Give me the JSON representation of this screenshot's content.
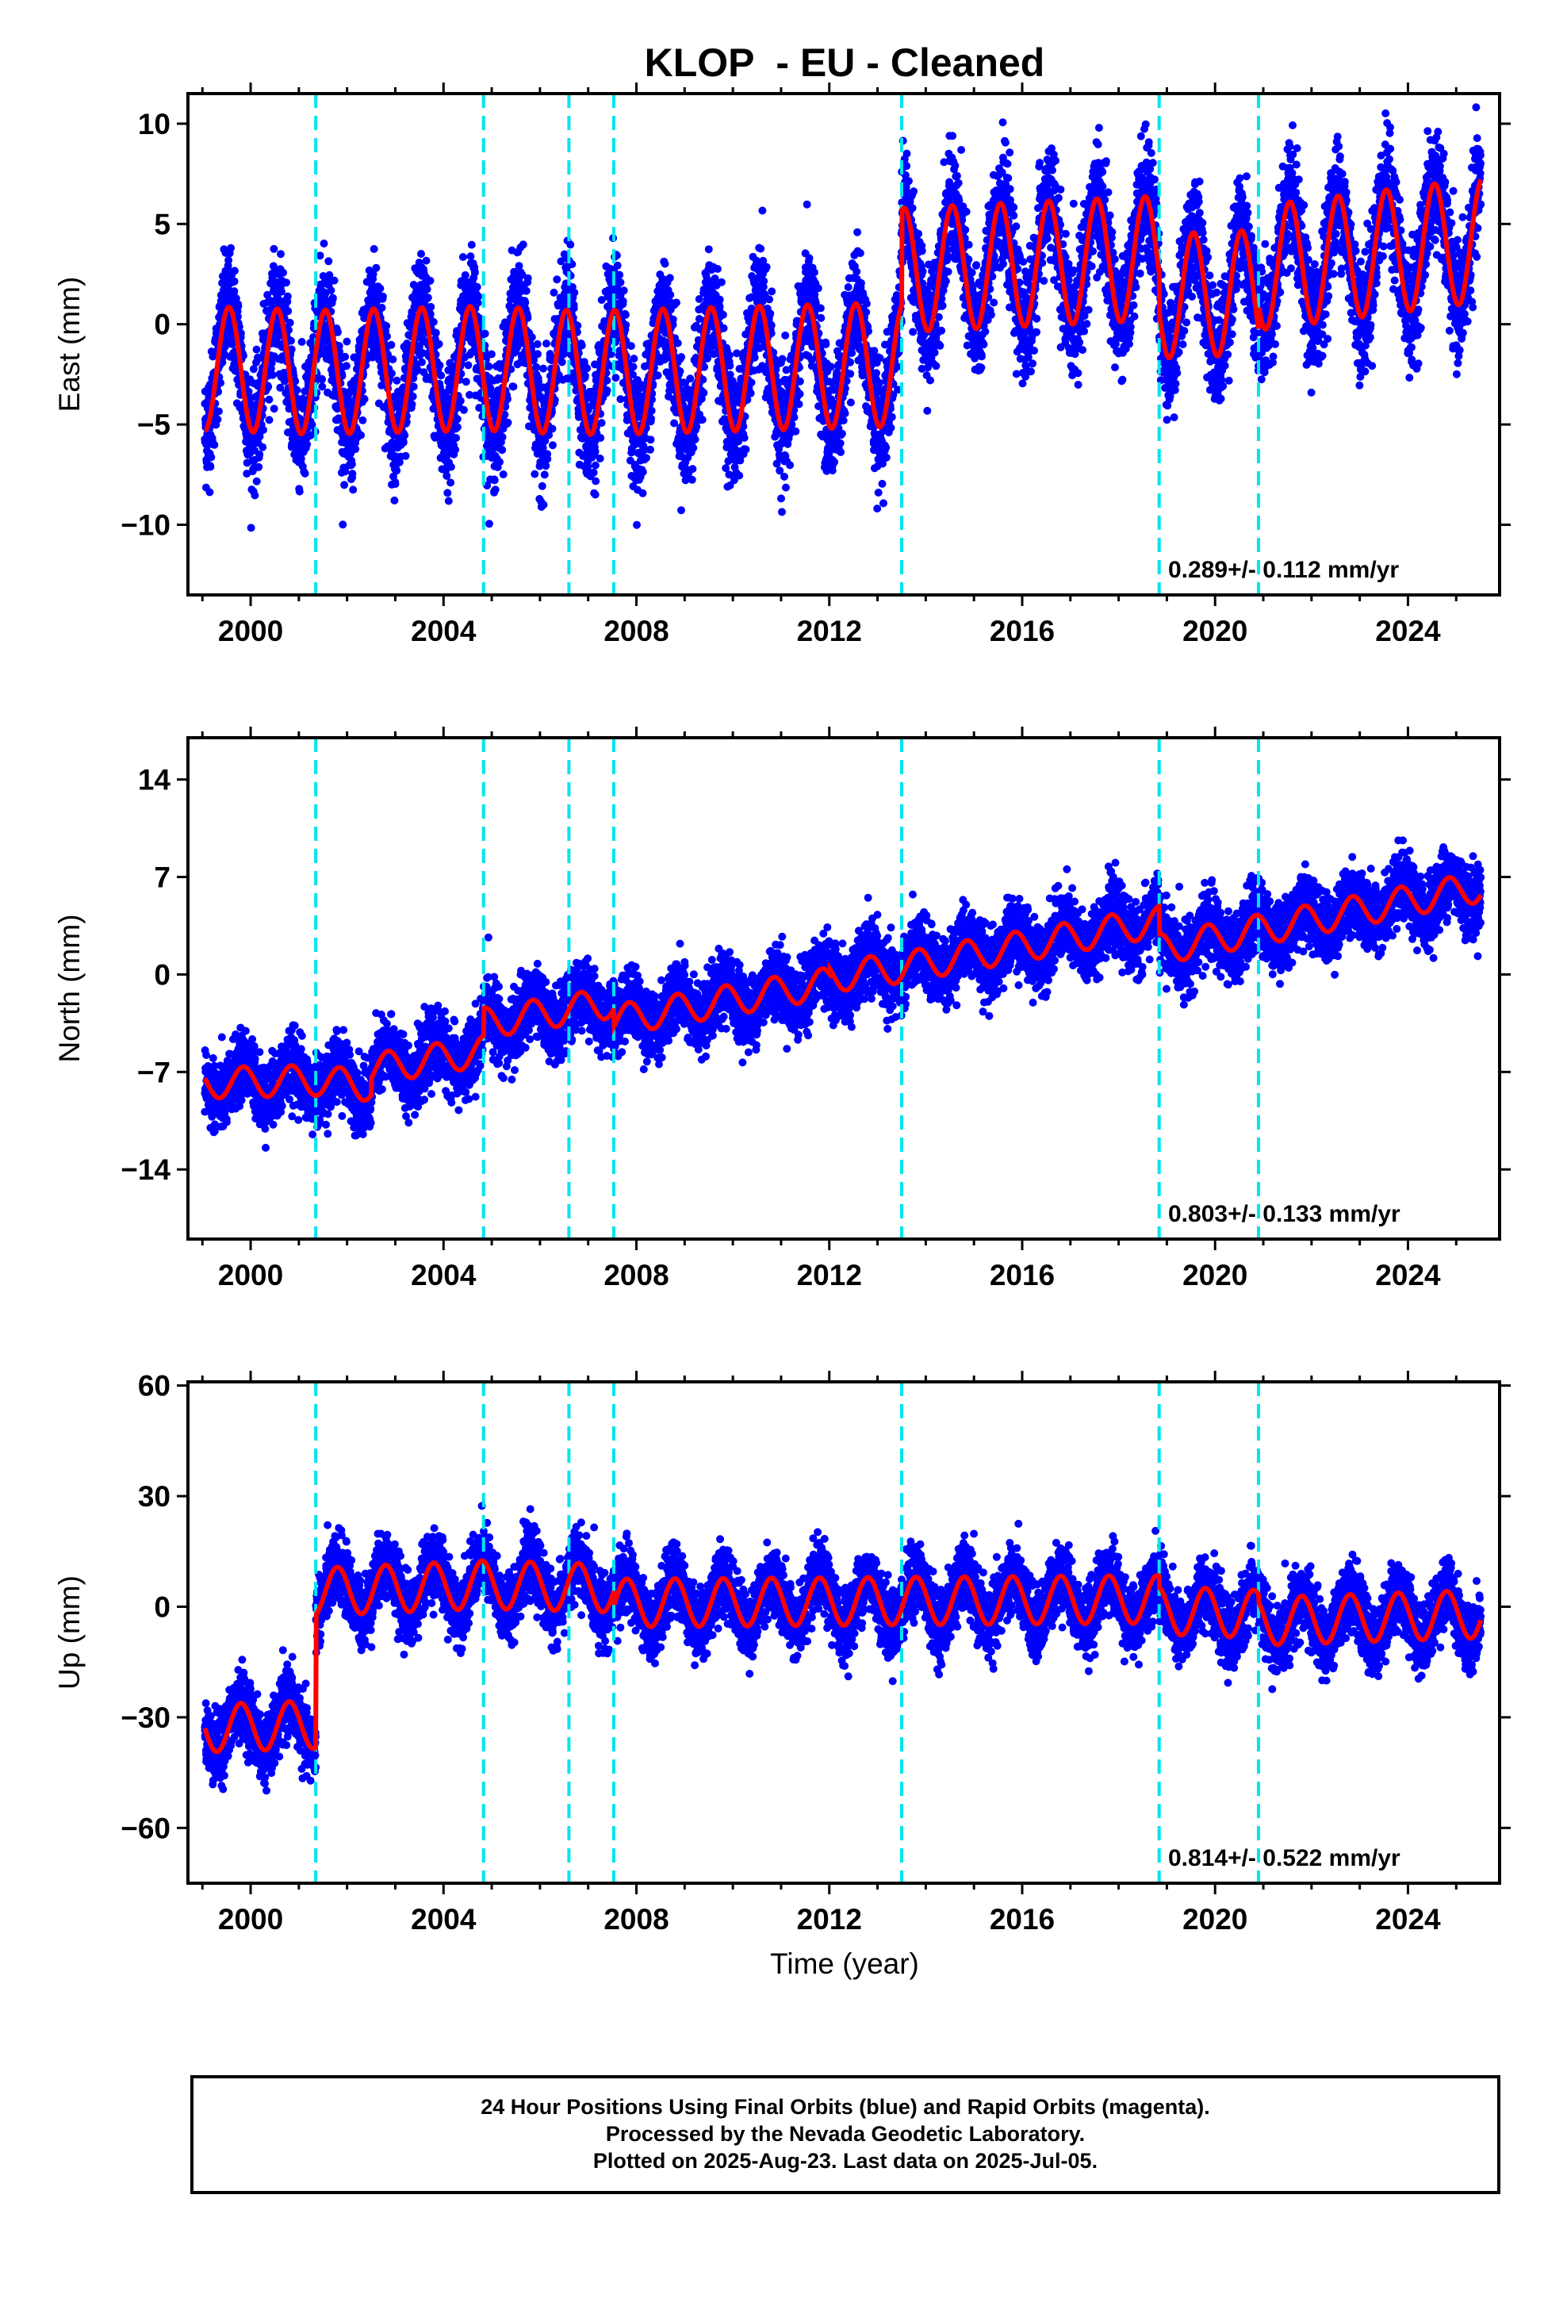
{
  "title": "KLOP  - EU - Cleaned",
  "xlabel": "Time (year)",
  "colors": {
    "points": "#0000ff",
    "model": "#ff0000",
    "steps": "#00e5ee",
    "frame": "#000000"
  },
  "footer": {
    "line1": "24 Hour Positions Using Final Orbits (blue) and Rapid Orbits (magenta).",
    "line2": "Processed by the Nevada Geodetic Laboratory.",
    "line3": "Plotted on 2025-Aug-23. Last data on 2025-Jul-05."
  },
  "chart_data": [
    {
      "type": "scatter",
      "ylabel": "East (mm)",
      "rate_label": "0.289+/- 0.112 mm/yr",
      "xlim": [
        1998.7,
        2025.9
      ],
      "ylim": [
        -13.5,
        11.5
      ],
      "xticks": [
        2000,
        2004,
        2008,
        2012,
        2016,
        2020,
        2024
      ],
      "yticks": [
        -10,
        -5,
        0,
        5,
        10
      ],
      "ytick_labels": [
        "−10",
        "−5",
        "0",
        "5",
        "10"
      ],
      "step_epochs": [
        2001.35,
        2004.83,
        2006.6,
        2007.53,
        2013.5,
        2018.84,
        2020.9
      ],
      "model": {
        "trend_anchors": [
          [
            1999.0,
            -2.2
          ],
          [
            2001.35,
            -2.4
          ],
          [
            2004.83,
            -2.2
          ],
          [
            2006.6,
            -2.4
          ],
          [
            2007.53,
            -2.4
          ],
          [
            2013.5,
            -2.0
          ],
          [
            2013.5,
            2.7
          ],
          [
            2018.84,
            3.3
          ],
          [
            2018.84,
            1.4
          ],
          [
            2020.9,
            1.6
          ],
          [
            2020.9,
            2.8
          ],
          [
            2025.5,
            4.2
          ]
        ],
        "annual_amplitude": 3.1,
        "annual_phase": 0.3,
        "noise_sd": 1.4
      }
    },
    {
      "type": "scatter",
      "ylabel": "North (mm)",
      "rate_label": "0.803+/- 0.133 mm/yr",
      "xlim": [
        1998.7,
        2025.9
      ],
      "ylim": [
        -19,
        17
      ],
      "xticks": [
        2000,
        2004,
        2008,
        2012,
        2016,
        2020,
        2024
      ],
      "yticks": [
        -14,
        -7,
        0,
        7,
        14
      ],
      "ytick_labels": [
        "−14",
        "−7",
        "0",
        "7",
        "14"
      ],
      "step_epochs": [
        2001.35,
        2004.83,
        2006.6,
        2007.53,
        2013.5,
        2018.84,
        2020.9
      ],
      "model": {
        "trend_anchors": [
          [
            1999.0,
            -7.8
          ],
          [
            2001.35,
            -7.6
          ],
          [
            2002.5,
            -8.0
          ],
          [
            2002.5,
            -6.8
          ],
          [
            2004.83,
            -5.5
          ],
          [
            2004.83,
            -3.5
          ],
          [
            2007.53,
            -2.0
          ],
          [
            2007.53,
            -3.3
          ],
          [
            2012.0,
            -0.6
          ],
          [
            2012.0,
            -0.2
          ],
          [
            2013.5,
            0.5
          ],
          [
            2018.84,
            3.8
          ],
          [
            2018.84,
            1.8
          ],
          [
            2025.5,
            6.3
          ]
        ],
        "annual_amplitude": 1.1,
        "annual_phase": 0.6,
        "noise_sd": 1.2
      }
    },
    {
      "type": "scatter",
      "ylabel": "Up (mm)",
      "rate_label": "0.814+/- 0.522 mm/yr",
      "xlim": [
        1998.7,
        2025.9
      ],
      "ylim": [
        -75,
        61
      ],
      "xticks": [
        2000,
        2004,
        2008,
        2012,
        2016,
        2020,
        2024
      ],
      "yticks": [
        -60,
        -30,
        0,
        30,
        60
      ],
      "ytick_labels": [
        "−60",
        "−30",
        "0",
        "30",
        "60"
      ],
      "step_epochs": [
        2001.35,
        2004.83,
        2006.6,
        2007.53,
        2013.5,
        2018.84,
        2020.9
      ],
      "model": {
        "trend_anchors": [
          [
            1999.0,
            -33
          ],
          [
            2001.35,
            -32
          ],
          [
            2001.35,
            4
          ],
          [
            2004.83,
            6
          ],
          [
            2007.53,
            5
          ],
          [
            2007.53,
            1
          ],
          [
            2018.84,
            2
          ],
          [
            2018.84,
            -1
          ],
          [
            2020.9,
            -2
          ],
          [
            2020.9,
            -4
          ],
          [
            2025.5,
            -2
          ]
        ],
        "annual_amplitude": 6.5,
        "annual_phase": 0.55,
        "noise_sd": 4.5
      }
    }
  ]
}
